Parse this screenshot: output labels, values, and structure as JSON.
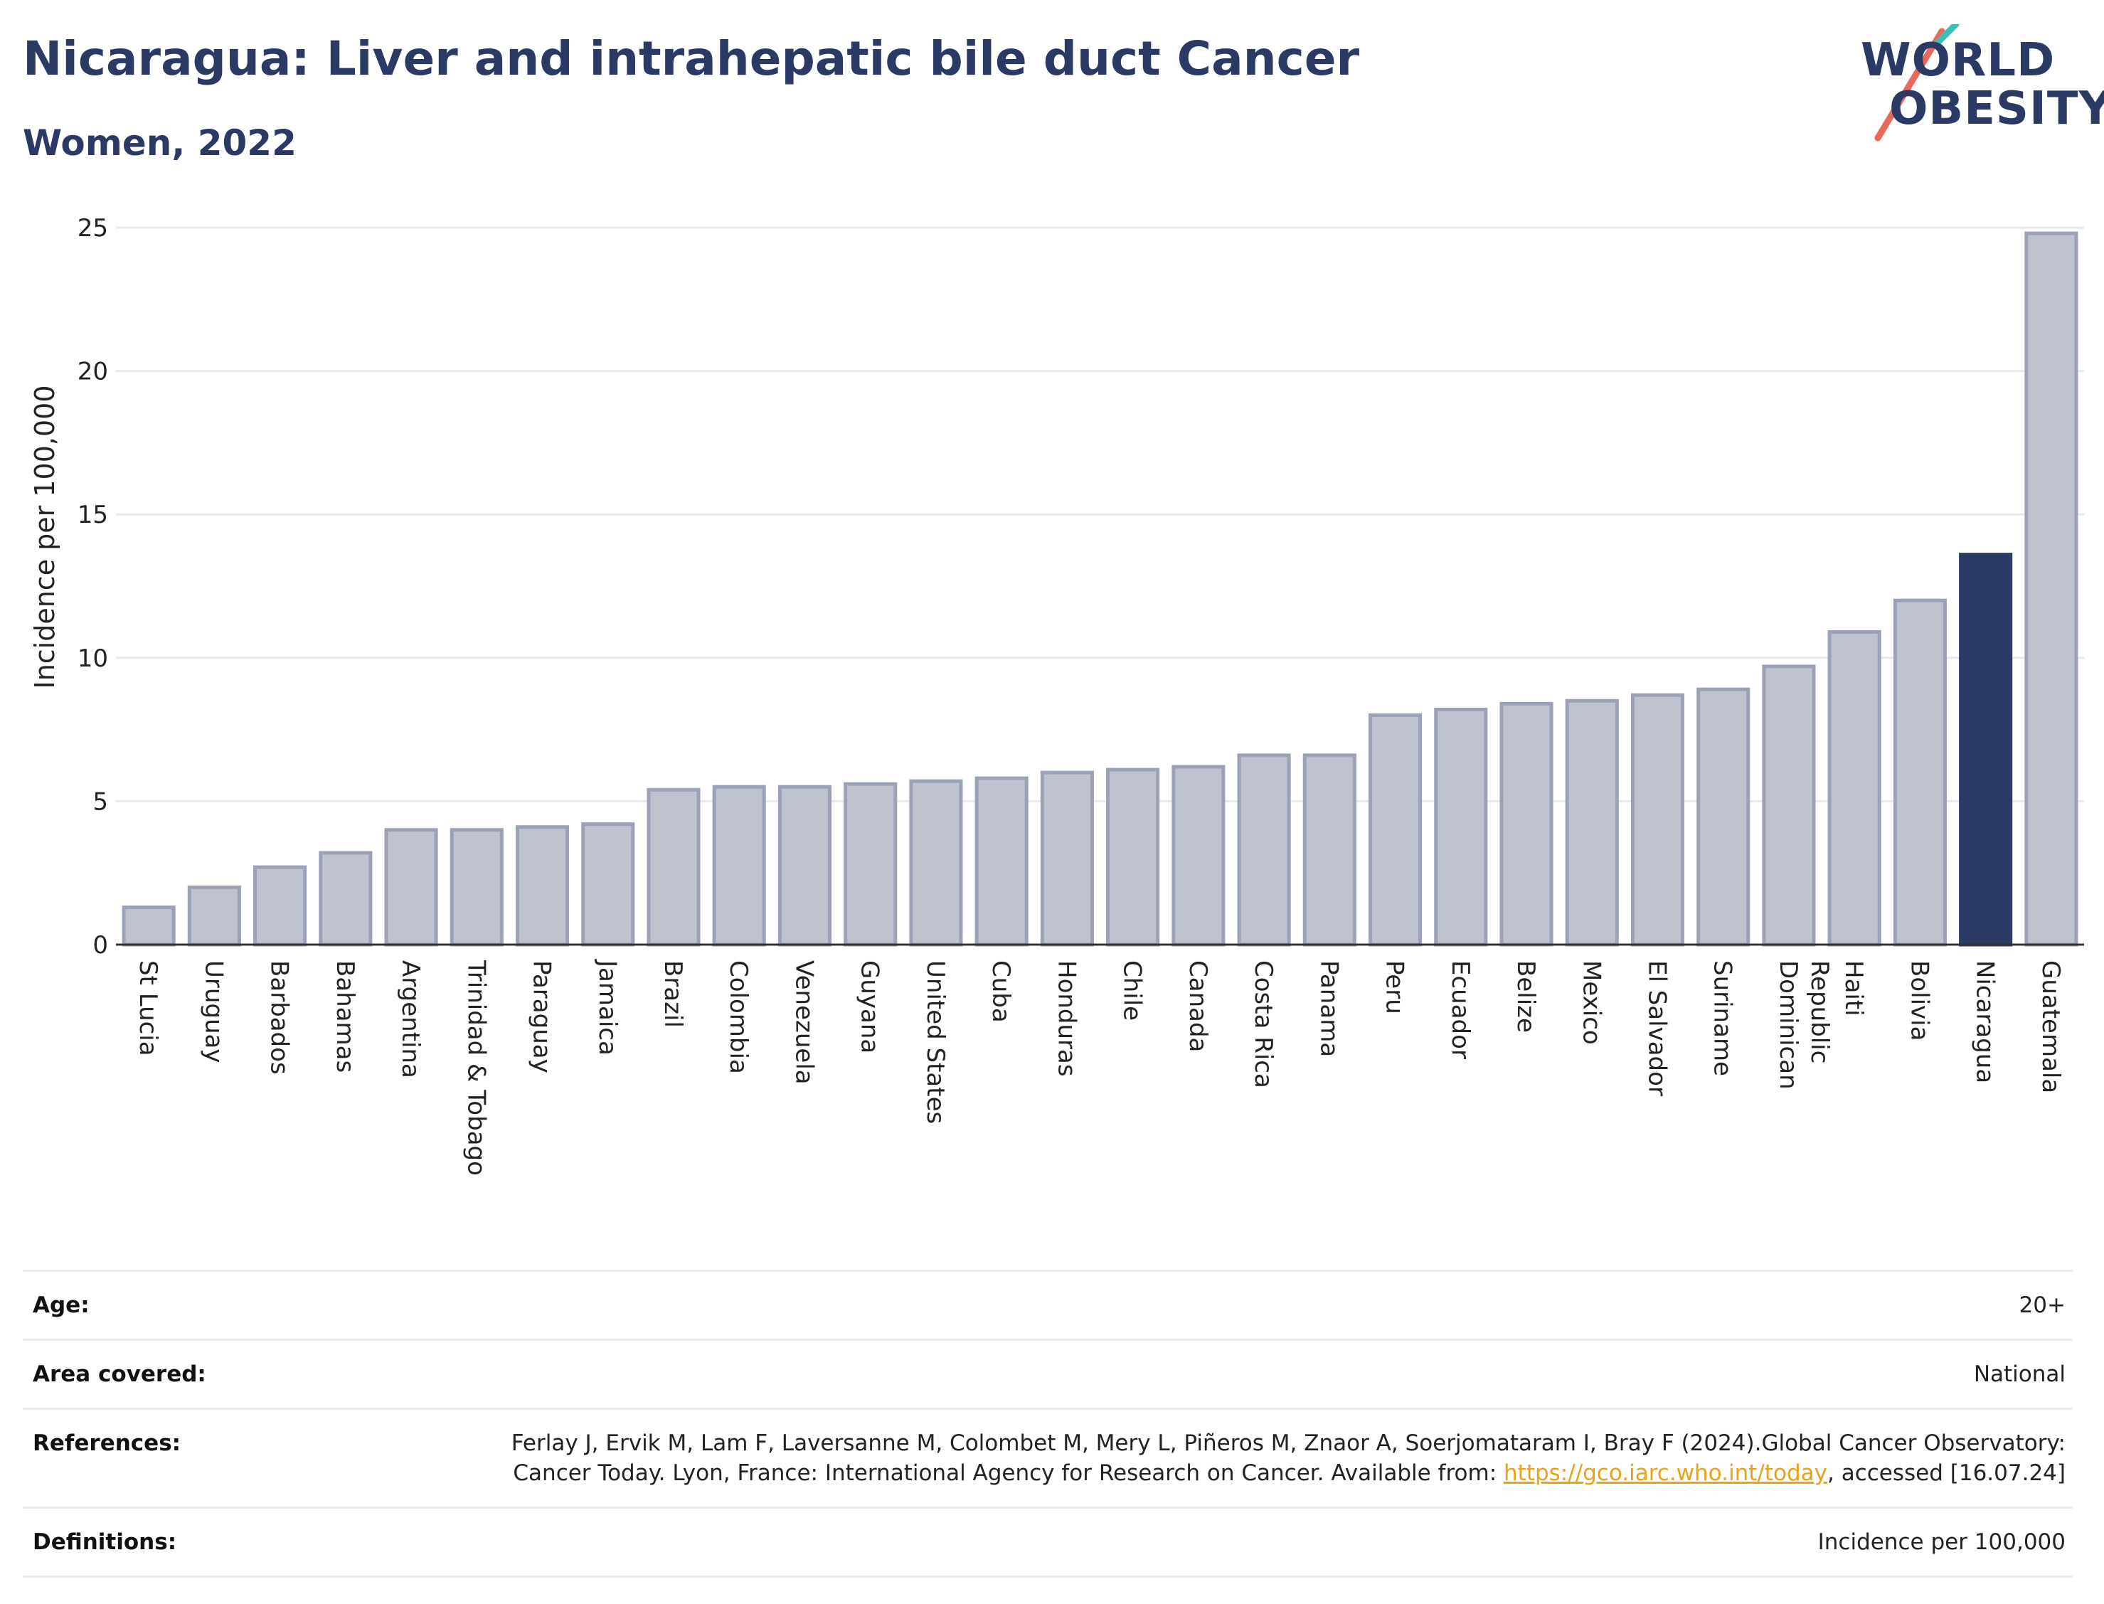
{
  "header": {
    "title": "Nicaragua: Liver and intrahepatic bile duct Cancer",
    "subtitle": "Women, 2022"
  },
  "logo": {
    "line1": "WORLD",
    "line2": "OBESITY"
  },
  "colors": {
    "bar": "#bfc3d0",
    "bar_border": "#9ba2b8",
    "highlight": "#2b3a64",
    "grid": "#e6e8ee",
    "title": "#2b3a64"
  },
  "chart_data": {
    "type": "bar",
    "title": "Nicaragua: Liver and intrahepatic bile duct Cancer",
    "subtitle": "Women, 2022",
    "xlabel": "",
    "ylabel": "Incidence per 100,000",
    "ylim": [
      0,
      25
    ],
    "yticks": [
      0,
      5,
      10,
      15,
      20,
      25
    ],
    "grid": true,
    "highlight": "Nicaragua",
    "categories": [
      "St Lucia",
      "Uruguay",
      "Barbados",
      "Bahamas",
      "Argentina",
      "Trinidad & Tobago",
      "Paraguay",
      "Jamaica",
      "Brazil",
      "Colombia",
      "Venezuela",
      "Guyana",
      "United States",
      "Cuba",
      "Honduras",
      "Chile",
      "Canada",
      "Costa Rica",
      "Panama",
      "Peru",
      "Ecuador",
      "Belize",
      "Mexico",
      "El Salvador",
      "Suriname",
      "Dominican Republic",
      "Haiti",
      "Bolivia",
      "Nicaragua",
      "Guatemala"
    ],
    "values": [
      1.3,
      2.0,
      2.7,
      3.2,
      4.0,
      4.0,
      4.1,
      4.2,
      5.4,
      5.5,
      5.5,
      5.6,
      5.7,
      5.8,
      6.0,
      6.1,
      6.2,
      6.6,
      6.6,
      8.0,
      8.2,
      8.4,
      8.5,
      8.7,
      8.9,
      9.7,
      10.9,
      12.0,
      13.6,
      24.8
    ]
  },
  "info": {
    "age_label": "Age:",
    "age_value": "20+",
    "area_label": "Area covered:",
    "area_value": "National",
    "references_label": "References:",
    "references_text": "Ferlay J, Ervik M, Lam F, Laversanne M, Colombet M, Mery L, Piñeros M, Znaor A, Soerjomataram I, Bray F (2024).Global Cancer Observatory: Cancer Today. Lyon, France: International Agency for Research on Cancer. Available from:",
    "references_link": "https://gco.iarc.who.int/today",
    "references_tail": ", accessed [16.07.24]",
    "definitions_label": "Definitions:",
    "definitions_value": "Incidence per 100,000"
  }
}
